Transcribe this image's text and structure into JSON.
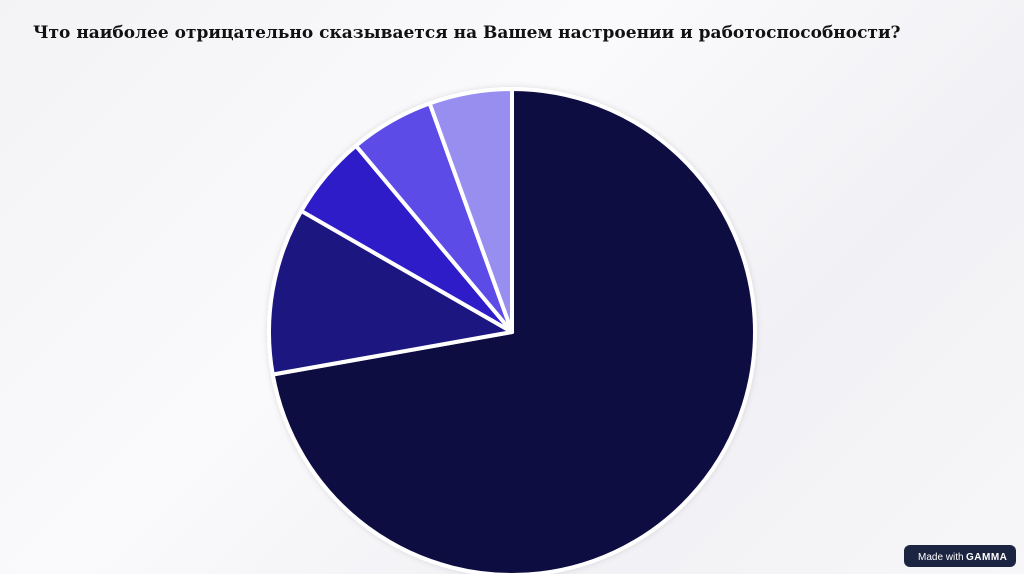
{
  "chart_data": {
    "type": "pie",
    "title": "Что наиболее отрицательно сказывается на Вашем настроении и работоспособности?",
    "values": [
      72.2,
      11.1,
      5.6,
      5.6,
      5.5
    ],
    "colors": [
      "#110c42",
      "#1e1680",
      "#2f1fc8",
      "#5b4ce6",
      "#978ef0"
    ],
    "start_angle": 0,
    "direction": "clockwise"
  },
  "badge": {
    "text": "Made with",
    "brand": "GAMMA"
  }
}
